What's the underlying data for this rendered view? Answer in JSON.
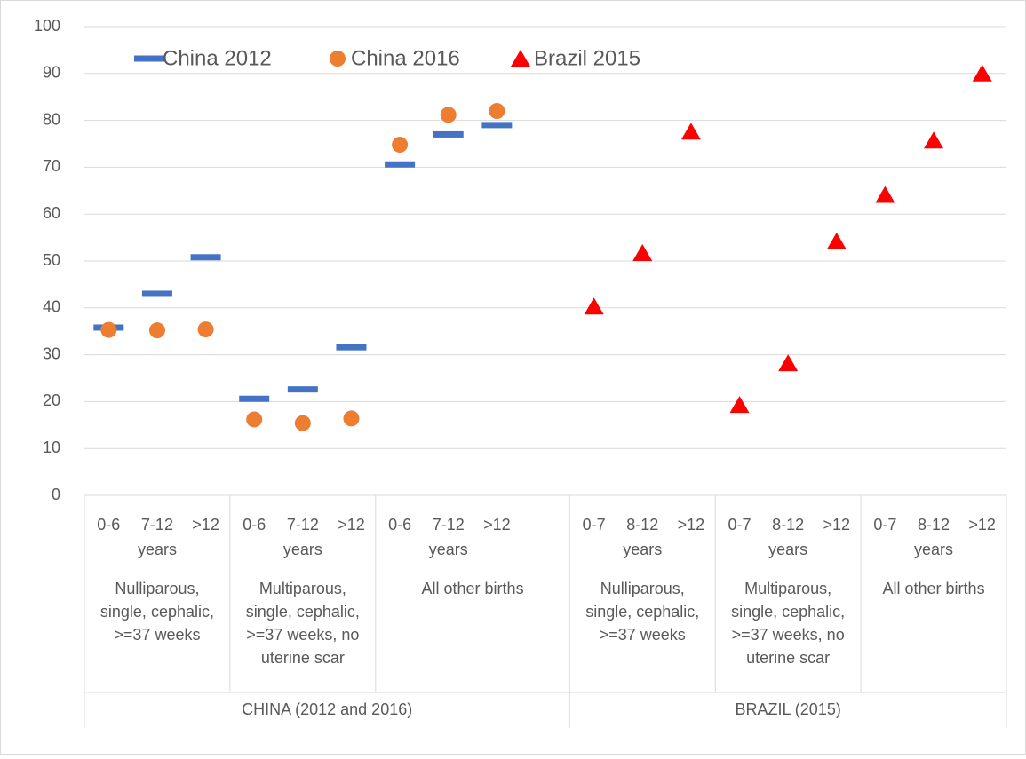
{
  "chart_data": {
    "type": "scatter",
    "ylim": [
      0,
      100
    ],
    "yticks": [
      0,
      10,
      20,
      30,
      40,
      50,
      60,
      70,
      80,
      90,
      100
    ],
    "grid": true,
    "legend": "top-left",
    "groups": [
      {
        "label": "CHINA (2012 and 2016)",
        "subgroups": [
          {
            "label": [
              "Nulliparous,",
              "single, cephalic,",
              ">=37 weeks"
            ],
            "unit": "years",
            "categories": [
              "0-6",
              "7-12",
              ">12"
            ]
          },
          {
            "label": [
              "Multiparous,",
              "single, cephalic,",
              ">=37 weeks, no",
              "uterine scar"
            ],
            "unit": "years",
            "categories": [
              "0-6",
              "7-12",
              ">12"
            ]
          },
          {
            "label": [
              "All other births"
            ],
            "unit": "years",
            "categories": [
              "0-6",
              "7-12",
              ">12",
              null
            ]
          }
        ]
      },
      {
        "label": "BRAZIL (2015)",
        "subgroups": [
          {
            "label": [
              "Nulliparous,",
              "single, cephalic,",
              ">=37 weeks"
            ],
            "unit": "years",
            "categories": [
              "0-7",
              "8-12",
              ">12"
            ]
          },
          {
            "label": [
              "Multiparous,",
              "single, cephalic,",
              ">=37 weeks, no",
              "uterine scar"
            ],
            "unit": "years",
            "categories": [
              "0-7",
              "8-12",
              ">12"
            ]
          },
          {
            "label": [
              "All other births"
            ],
            "unit": "years",
            "categories": [
              "0-7",
              "8-12",
              ">12"
            ]
          }
        ]
      }
    ],
    "series": [
      {
        "name": "China 2012",
        "color": "#4472c4",
        "marker": "dash",
        "values": [
          35.8,
          43,
          50.8,
          20.6,
          22.6,
          31.6,
          70.6,
          77,
          79,
          null,
          null,
          null,
          null,
          null,
          null,
          null,
          null,
          null,
          null
        ]
      },
      {
        "name": "China 2016",
        "color": "#ed7d31",
        "marker": "circle",
        "values": [
          35.3,
          35.2,
          35.4,
          16.2,
          15.4,
          16.4,
          74.8,
          81.2,
          82,
          null,
          null,
          null,
          null,
          null,
          null,
          null,
          null,
          null,
          null
        ]
      },
      {
        "name": "Brazil 2015",
        "color": "#ff0000",
        "marker": "triangle",
        "values": [
          null,
          null,
          null,
          null,
          null,
          null,
          null,
          null,
          null,
          null,
          40.3,
          51.7,
          77.6,
          19.3,
          28.2,
          54.2,
          64.1,
          75.7,
          90
        ]
      }
    ]
  }
}
